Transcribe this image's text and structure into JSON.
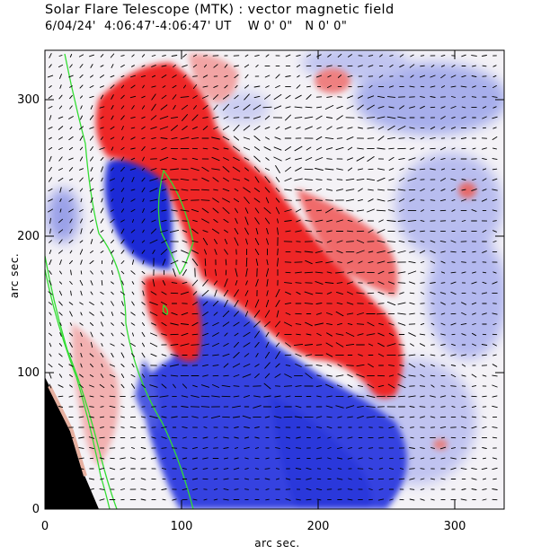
{
  "title": "Solar Flare Telescope (MTK) : vector magnetic field",
  "subtitle": "6/04/24'  4:06:47'-4:06:47' UT    W 0' 0\"   N 0' 0\"",
  "xlabel": "arc sec.",
  "ylabel": "arc sec.",
  "x_ticks": [
    "0",
    "100",
    "200",
    "300"
  ],
  "y_ticks": [
    "0",
    "100",
    "200",
    "300"
  ],
  "colors": {
    "positive": "#ee2a2a",
    "negative": "#2a3ae6",
    "contour": "#33dd33",
    "limb": "#000000"
  }
}
